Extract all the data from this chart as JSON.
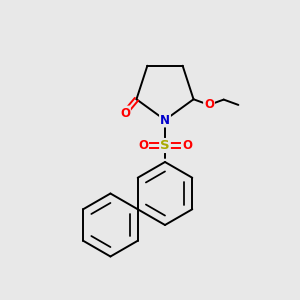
{
  "background_color": "#e8e8e8",
  "bond_color": "#000000",
  "N_color": "#0000cc",
  "O_color": "#ff0000",
  "S_color": "#aaaa00",
  "figsize": [
    3.0,
    3.0
  ],
  "dpi": 100,
  "font_size": 8.5,
  "lw": 1.4,
  "xlim": [
    0,
    10
  ],
  "ylim": [
    0,
    10
  ]
}
